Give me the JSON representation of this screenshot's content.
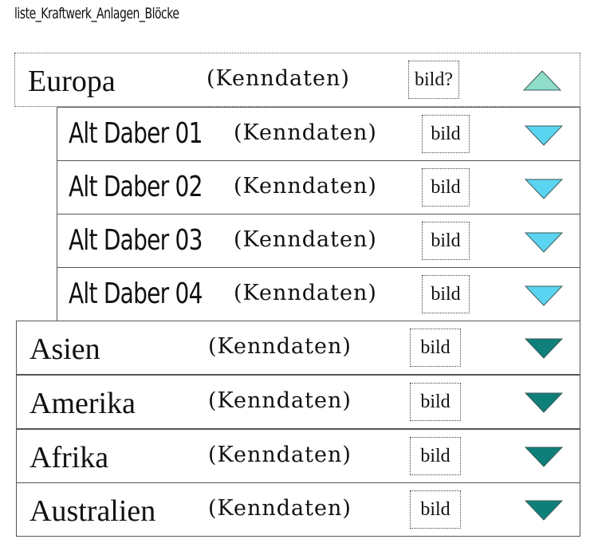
{
  "title": "liste_Kraftwerk_Anlagen_Blöcke",
  "colors": {
    "expanded_triangle": "#8fdcc8",
    "sub_triangle": "#5ad4f0",
    "collapsed_triangle": "#0e8079",
    "triangle_stroke": "#3a5a5a"
  },
  "rows": [
    {
      "name": "Europa",
      "kenndaten": "(Kenndaten)",
      "bild": "bild?",
      "state": "expanded",
      "icon": "triangle-up-icon"
    },
    {
      "name": "Alt Daber 01",
      "kenndaten": "(Kenndaten)",
      "bild": "bild",
      "state": "sub",
      "icon": "triangle-down-icon"
    },
    {
      "name": "Alt Daber 02",
      "kenndaten": "(Kenndaten)",
      "bild": "bild",
      "state": "sub",
      "icon": "triangle-down-icon"
    },
    {
      "name": "Alt Daber 03",
      "kenndaten": "(Kenndaten)",
      "bild": "bild",
      "state": "sub",
      "icon": "triangle-down-icon"
    },
    {
      "name": "Alt Daber 04",
      "kenndaten": "(Kenndaten)",
      "bild": "bild",
      "state": "sub",
      "icon": "triangle-down-icon"
    },
    {
      "name": "Asien",
      "kenndaten": "(Kenndaten)",
      "bild": "bild",
      "state": "collapsed",
      "icon": "triangle-down-icon"
    },
    {
      "name": "Amerika",
      "kenndaten": "(Kenndaten)",
      "bild": "bild",
      "state": "collapsed",
      "icon": "triangle-down-icon"
    },
    {
      "name": "Afrika",
      "kenndaten": "(Kenndaten)",
      "bild": "bild",
      "state": "collapsed",
      "icon": "triangle-down-icon"
    },
    {
      "name": "Australien",
      "kenndaten": "(Kenndaten)",
      "bild": "bild",
      "state": "collapsed",
      "icon": "triangle-down-icon"
    }
  ]
}
